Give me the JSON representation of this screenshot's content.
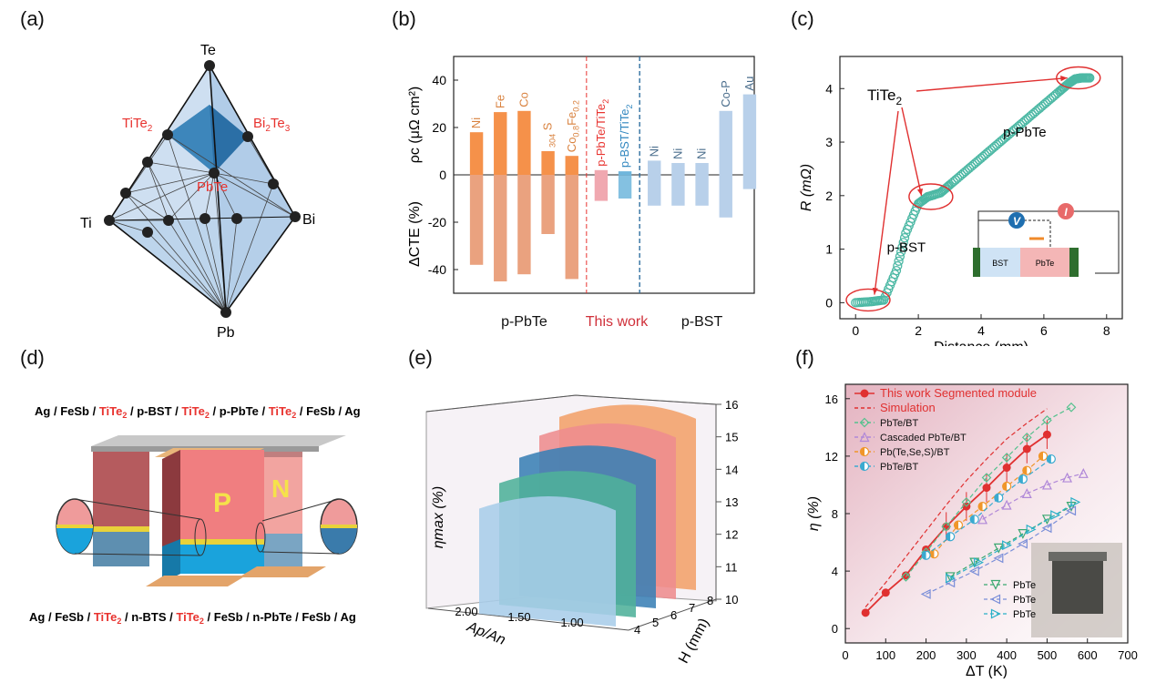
{
  "panel_labels": [
    "(a)",
    "(b)",
    "(c)",
    "(d)",
    "(e)",
    "(f)"
  ],
  "panel_a": {
    "vertices": {
      "top": "Te",
      "left": "Ti",
      "right": "Bi",
      "bottom": "Pb"
    },
    "phases": [
      "TiTe2",
      "Bi2Te3",
      "PbTe"
    ],
    "phase_color": "#e8332f"
  },
  "chart_data": [
    {
      "panel": "b",
      "type": "bar",
      "ylim": [
        -50,
        50
      ],
      "yticks": [
        40,
        20,
        0,
        -20,
        -40
      ],
      "ylabel_top": "ρc (μΩ cm²)",
      "ylabel_bottom": "ΔCTE (%)",
      "groups": [
        "p-PbTe",
        "This work",
        "p-BST"
      ],
      "categories": [
        "Ni",
        "Fe",
        "Co",
        "304 S",
        "Co0.8Fe0.2",
        "p-PbTe/TiTe2",
        "p-BST/TiTe2",
        "Ni",
        "Ni",
        "Ni",
        "Co-P",
        "Au"
      ],
      "group_of": [
        0,
        0,
        0,
        0,
        0,
        1,
        1,
        2,
        2,
        2,
        2,
        2
      ],
      "rho_c": [
        18,
        26.5,
        27,
        10,
        8,
        2,
        1.5,
        6,
        5,
        5,
        27,
        34
      ],
      "delta_cte": [
        -38,
        -45,
        -42,
        -25,
        -44,
        -11,
        -10,
        -13,
        -13,
        -13,
        -18,
        -6
      ],
      "colors": {
        "ppbte": "#f5914a",
        "ppbte_light": "#eaa27f",
        "thiswork_pink": "#f0a8b0",
        "thiswork_blue": "#6fb6dc",
        "pbst": "#b8d0ea",
        "pbst_text": "#4a6d8c"
      }
    },
    {
      "panel": "c",
      "type": "line",
      "xlabel": "Distance (mm)",
      "ylabel": "R (mΩ)",
      "xlim": [
        -0.5,
        8.5
      ],
      "ylim": [
        -0.3,
        4.6
      ],
      "xticks": [
        0,
        2,
        4,
        6,
        8
      ],
      "yticks": [
        0,
        1,
        2,
        3,
        4
      ],
      "x": [
        0,
        0.5,
        0.9,
        1.3,
        1.6,
        2.0,
        2.3,
        2.7,
        3.0,
        3.5,
        4.0,
        4.5,
        5.0,
        5.5,
        6.0,
        6.5,
        6.8,
        7.0,
        7.2,
        7.5
      ],
      "y": [
        0,
        0.02,
        0.05,
        0.6,
        1.3,
        1.85,
        1.98,
        2.05,
        2.2,
        2.45,
        2.7,
        2.95,
        3.2,
        3.45,
        3.7,
        3.95,
        4.1,
        4.18,
        4.2,
        4.2
      ],
      "annotations": {
        "titanium": "TiTe2",
        "pbte": "p-PbTe",
        "bst": "p-BST"
      },
      "inset": {
        "v": "V",
        "i": "I",
        "bst": "BST",
        "pbte": "PbTe"
      },
      "color": "#4cb8a4"
    },
    {
      "panel": "e",
      "type": "area",
      "zlabel": "ηmax (%)",
      "xlabel": "Ap/An",
      "ylabel": "H (mm)",
      "zticks": [
        10,
        11,
        12,
        13,
        14,
        15,
        16
      ],
      "x_ticks": [
        2.0,
        1.5,
        1.0
      ],
      "x_tick_labels": [
        "2.00",
        "1.50",
        "1.00"
      ],
      "h_ticks": [
        4,
        5,
        6,
        7,
        8
      ],
      "series": [
        {
          "name": "H=4",
          "peak": 13.6,
          "color": "#a9cde9"
        },
        {
          "name": "H=5",
          "peak": 14.1,
          "color": "#4fb19a"
        },
        {
          "name": "H=6",
          "peak": 14.6,
          "color": "#3a80b5"
        },
        {
          "name": "H=7",
          "peak": 15.0,
          "color": "#ee8c8e"
        },
        {
          "name": "H=8",
          "peak": 15.3,
          "color": "#f2a06a"
        }
      ]
    },
    {
      "panel": "f",
      "type": "line",
      "xlabel": "ΔT (K)",
      "ylabel": "η (%)",
      "xlim": [
        0,
        700
      ],
      "ylim": [
        -1,
        17
      ],
      "xticks": [
        0,
        100,
        200,
        300,
        400,
        500,
        600,
        700
      ],
      "yticks": [
        0,
        4,
        8,
        12,
        16
      ],
      "series": [
        {
          "name": "This work  Segmented module",
          "color": "#e03030",
          "marker": "circle",
          "x": [
            50,
            100,
            150,
            200,
            250,
            300,
            350,
            400,
            450,
            500
          ],
          "y": [
            1.1,
            2.5,
            3.7,
            5.5,
            7.1,
            8.5,
            9.8,
            11.2,
            12.5,
            13.5
          ]
        },
        {
          "name": "Simulation",
          "color": "#e03030",
          "dashed": true,
          "x": [
            50,
            100,
            150,
            200,
            250,
            300,
            350,
            400,
            450,
            500
          ],
          "y": [
            1.5,
            3.2,
            5.0,
            6.8,
            8.6,
            10.3,
            11.8,
            13.2,
            14.3,
            15.3
          ]
        },
        {
          "name": "PbTe/BT",
          "color": "#55c18e",
          "marker": "diamond",
          "x": [
            150,
            200,
            250,
            300,
            350,
            400,
            450,
            500,
            560
          ],
          "y": [
            3.6,
            5.3,
            7.1,
            8.8,
            10.5,
            11.9,
            13.3,
            14.5,
            15.4
          ]
        },
        {
          "name": "Cascaded PbTe/BT",
          "color": "#b088d8",
          "marker": "triangle",
          "x": [
            340,
            400,
            450,
            500,
            550,
            590
          ],
          "y": [
            7.6,
            8.6,
            9.4,
            10.0,
            10.5,
            10.8
          ]
        },
        {
          "name": "Pb(Te,Se,S)/BT",
          "color": "#f0962a",
          "marker": "half-circle",
          "x": [
            220,
            280,
            340,
            400,
            450,
            490
          ],
          "y": [
            5.2,
            7.2,
            8.5,
            9.9,
            11.0,
            12.0
          ]
        },
        {
          "name": "PbTe/BT",
          "color": "#3aaad0",
          "marker": "half-circle",
          "x": [
            200,
            260,
            320,
            380,
            440,
            510
          ],
          "y": [
            5.1,
            6.4,
            7.6,
            9.1,
            10.4,
            11.8
          ]
        },
        {
          "name": "PbTe",
          "color": "#3aa870",
          "marker": "tri-down",
          "x": [
            260,
            320,
            380,
            440,
            500,
            560
          ],
          "y": [
            3.6,
            4.6,
            5.6,
            6.6,
            7.6,
            8.5
          ]
        },
        {
          "name": "PbTe",
          "color": "#7a8ed8",
          "marker": "tri-left",
          "x": [
            200,
            260,
            320,
            380,
            440,
            500,
            560
          ],
          "y": [
            2.4,
            3.2,
            4.0,
            4.9,
            5.9,
            7.0,
            8.2
          ]
        },
        {
          "name": "PbTe",
          "color": "#2ab0c8",
          "marker": "tri-right",
          "x": [
            260,
            330,
            400,
            460,
            520,
            570
          ],
          "y": [
            3.5,
            4.6,
            5.8,
            6.9,
            7.9,
            8.8
          ]
        }
      ]
    }
  ],
  "panel_d": {
    "top_stack": [
      "Ag",
      "/",
      "FeSb",
      "/",
      "TiTe2",
      "/",
      "p-BST",
      "/",
      "TiTe2",
      "/",
      "p-PbTe",
      "/",
      "TiTe2",
      "/",
      "FeSb",
      "/",
      "Ag"
    ],
    "bottom_stack": [
      "Ag",
      "/",
      "FeSb",
      "/",
      "TiTe2",
      "/",
      "n-BTS",
      "/",
      "TiTe2",
      "/",
      "FeSb",
      "/",
      "n-PbTe",
      "/",
      "FeSb",
      "/",
      "Ag"
    ],
    "leg_labels": {
      "p": "P",
      "n": "N"
    },
    "highlight": "TiTe2"
  }
}
